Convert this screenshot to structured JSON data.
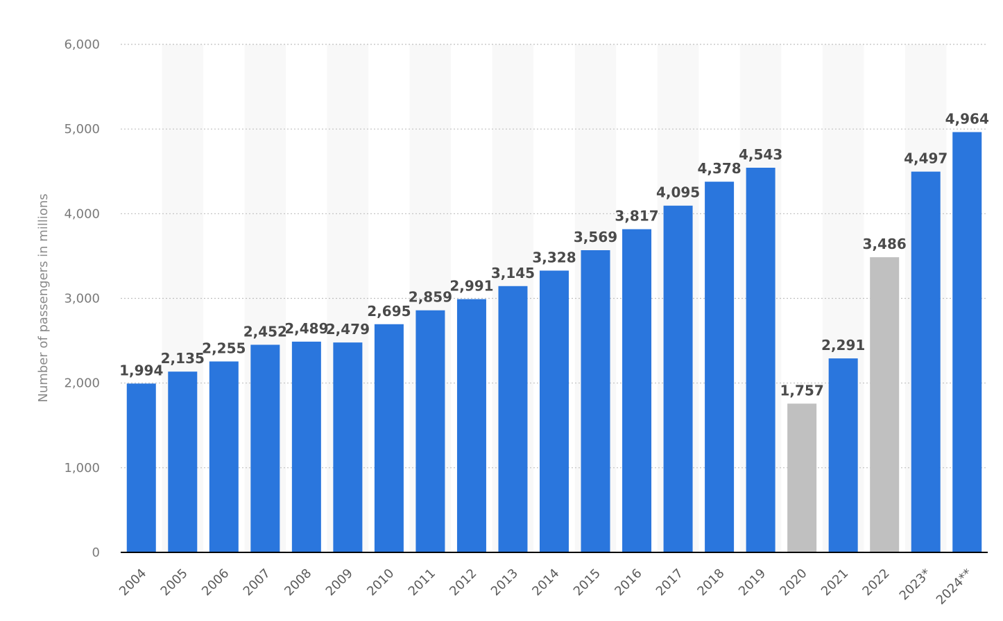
{
  "chart_data": {
    "type": "bar",
    "title": "",
    "xlabel": "",
    "ylabel": "Number of passengers in millions",
    "ylim": [
      0,
      6000
    ],
    "yticks": [
      0,
      1000,
      2000,
      3000,
      4000,
      5000,
      6000
    ],
    "ytick_labels": [
      "0",
      "1,000",
      "2,000",
      "3,000",
      "4,000",
      "5,000",
      "6,000"
    ],
    "categories": [
      "2004",
      "2005",
      "2006",
      "2007",
      "2008",
      "2009",
      "2010",
      "2011",
      "2012",
      "2013",
      "2014",
      "2015",
      "2016",
      "2017",
      "2018",
      "2019",
      "2020",
      "2021",
      "2022",
      "2023*",
      "2024**"
    ],
    "values": [
      1994,
      2135,
      2255,
      2452,
      2489,
      2479,
      2695,
      2859,
      2991,
      3145,
      3328,
      3569,
      3817,
      4095,
      4378,
      4543,
      1757,
      2291,
      3486,
      4497,
      4964
    ],
    "value_labels": [
      "1,994",
      "2,135",
      "2,255",
      "2,452",
      "2,489",
      "2,479",
      "2,695",
      "2,859",
      "2,991",
      "3,145",
      "3,328",
      "3,569",
      "3,817",
      "4,095",
      "4,378",
      "4,543",
      "1,757",
      "2,291",
      "3,486",
      "4,497",
      "4,964"
    ],
    "bar_colors": [
      "#2a76dd",
      "#2a76dd",
      "#2a76dd",
      "#2a76dd",
      "#2a76dd",
      "#2a76dd",
      "#2a76dd",
      "#2a76dd",
      "#2a76dd",
      "#2a76dd",
      "#2a76dd",
      "#2a76dd",
      "#2a76dd",
      "#2a76dd",
      "#2a76dd",
      "#2a76dd",
      "#c0c0c0",
      "#2a76dd",
      "#c0c0c0",
      "#2a76dd",
      "#2a76dd"
    ],
    "grid": true,
    "legend": "none"
  }
}
